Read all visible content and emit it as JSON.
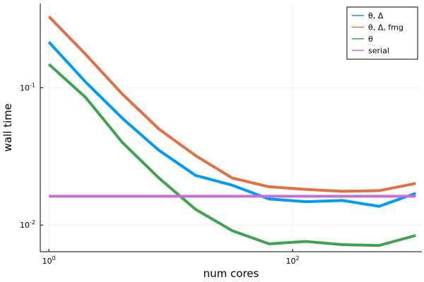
{
  "chart_data": {
    "type": "line",
    "title": "",
    "xlabel": "num cores",
    "ylabel": "wall time",
    "xscale": "log2",
    "yscale": "log10",
    "x_tick_labels": [
      {
        "value": 1,
        "base": "10",
        "exp": "0"
      },
      {
        "value": 100,
        "base": "10",
        "exp": "2"
      }
    ],
    "y_tick_labels": [
      {
        "value": 0.1,
        "base": "10",
        "exp": "-1"
      },
      {
        "value": 0.01,
        "base": "10",
        "exp": "-2"
      }
    ],
    "xlim": [
      0.85,
      1150
    ],
    "ylim": [
      0.0064,
      0.41
    ],
    "grid": true,
    "legend_position": "top-right",
    "series": [
      {
        "name": "θ, Δ",
        "color": "#009af9",
        "x": [
          1,
          2,
          4,
          8,
          16,
          32,
          64,
          128,
          256,
          512,
          1024
        ],
        "y": [
          0.215,
          0.11,
          0.06,
          0.035,
          0.023,
          0.0195,
          0.0155,
          0.0148,
          0.0151,
          0.0137,
          0.017
        ]
      },
      {
        "name": "θ, Δ, fmg",
        "color": "#e26f46",
        "x": [
          1,
          2,
          4,
          8,
          16,
          32,
          64,
          128,
          256,
          512,
          1024
        ],
        "y": [
          0.33,
          0.175,
          0.09,
          0.05,
          0.032,
          0.022,
          0.019,
          0.0182,
          0.0176,
          0.0178,
          0.0201
        ]
      },
      {
        "name": "θ",
        "color": "#3da44d",
        "x": [
          1,
          2,
          4,
          8,
          16,
          32,
          64,
          128,
          256,
          512,
          1024
        ],
        "y": [
          0.148,
          0.085,
          0.04,
          0.022,
          0.013,
          0.0091,
          0.0073,
          0.0076,
          0.0072,
          0.0071,
          0.0084
        ]
      },
      {
        "name": "serial",
        "color": "#c271d2",
        "x": [
          1,
          1024
        ],
        "y": [
          0.0162,
          0.0162
        ]
      }
    ]
  }
}
